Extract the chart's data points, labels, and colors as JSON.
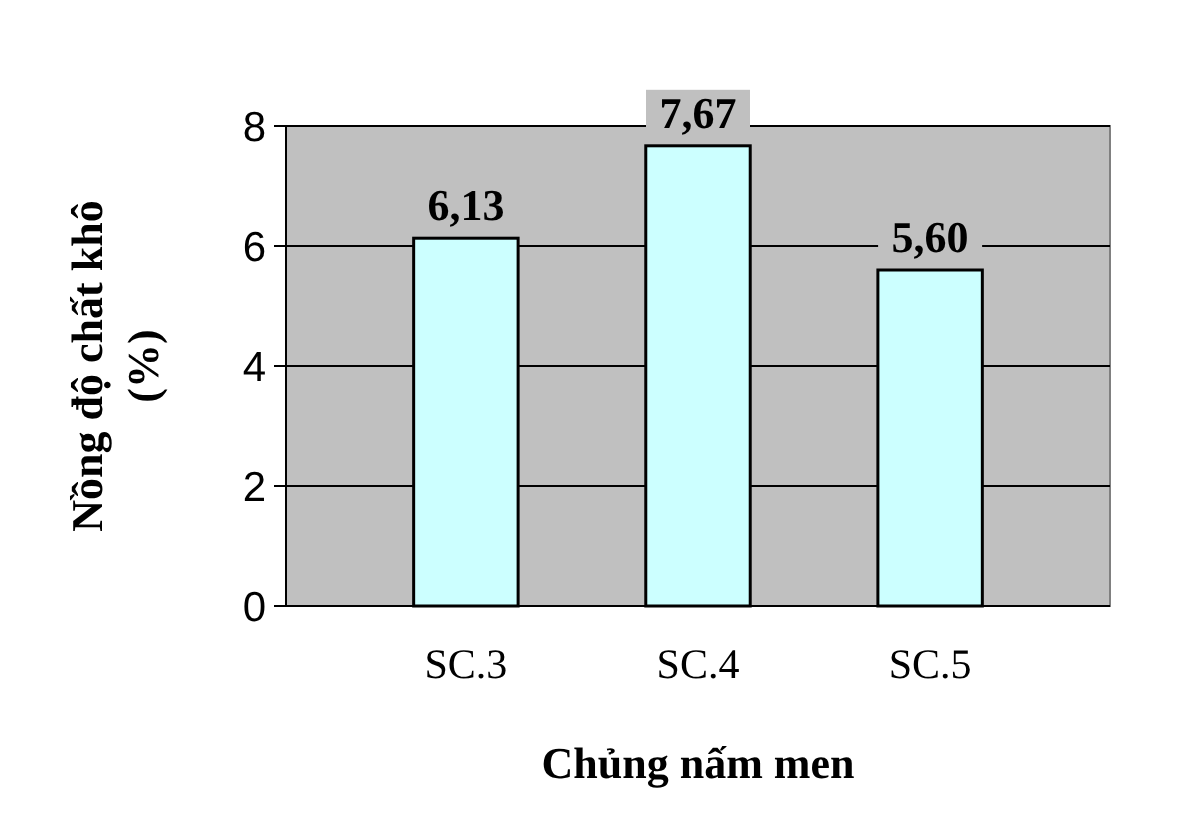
{
  "chart_data": {
    "type": "bar",
    "categories": [
      "SC.3",
      "SC.4",
      "SC.5"
    ],
    "values": [
      6.13,
      7.67,
      5.6
    ],
    "value_labels": [
      "6,13",
      "7,67",
      "5,60"
    ],
    "color": "#ccffff",
    "ylim": [
      0,
      8
    ],
    "yticks": [
      0,
      2,
      4,
      6,
      8
    ],
    "grid": "y",
    "xlabel": "Chủng nấm men",
    "ylabel": "Nồng độ chất khô\n(%)"
  }
}
